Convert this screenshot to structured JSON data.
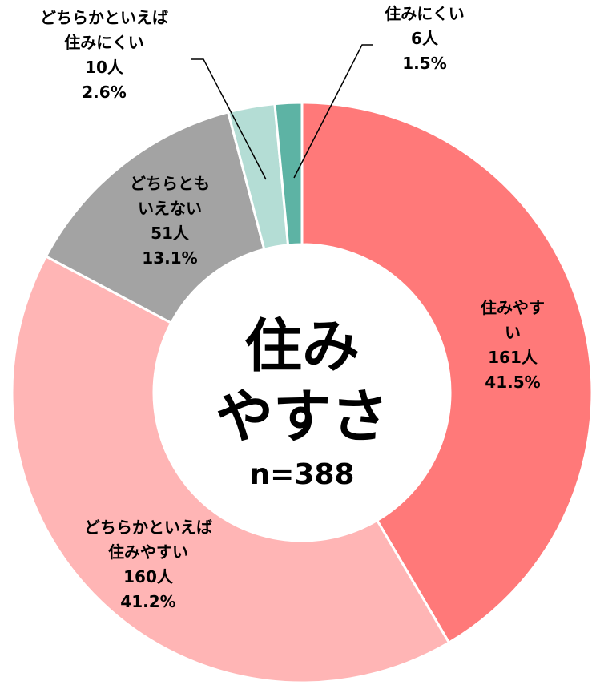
{
  "chart_data": {
    "type": "donut",
    "center_title": "住み\nやすさ",
    "n_label": "n=388",
    "categories": [
      "住みやすい",
      "どちらかといえば\n住みやすい",
      "どちらとも\nいえない",
      "どちらかといえば\n住みにくい",
      "住みにくい"
    ],
    "values": [
      41.5,
      41.2,
      13.1,
      2.6,
      1.5
    ],
    "value_labels": [
      "41.5%",
      "41.2%",
      "13.1%",
      "2.6%",
      "1.5%"
    ],
    "counts": [
      161,
      160,
      51,
      10,
      6
    ],
    "count_labels": [
      "161人",
      "160人",
      "51人",
      "10人",
      "6人"
    ],
    "colors": [
      "#ff7979",
      "#ffb5b5",
      "#a3a3a3",
      "#b4ddd5",
      "#5db3a4"
    ]
  }
}
